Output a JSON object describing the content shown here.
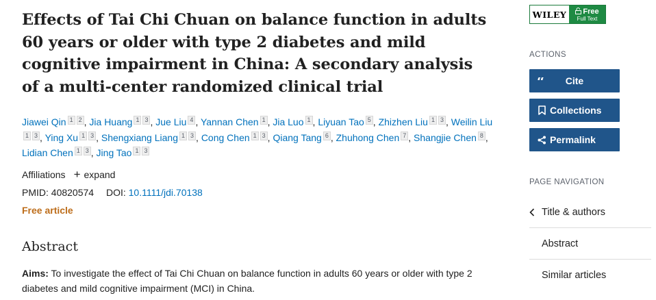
{
  "article": {
    "title": "Effects of Tai Chi Chuan on balance function in adults 60 years or older with type 2 diabetes and mild cognitive impairment in China: A secondary analysis of a multi-center randomized clinical trial",
    "authors": [
      {
        "name": "Jiawei Qin",
        "affs": [
          "1",
          "2"
        ]
      },
      {
        "name": "Jia Huang",
        "affs": [
          "1",
          "3"
        ]
      },
      {
        "name": "Jue Liu",
        "affs": [
          "4"
        ]
      },
      {
        "name": "Yannan Chen",
        "affs": [
          "1"
        ]
      },
      {
        "name": "Jia Luo",
        "affs": [
          "1"
        ]
      },
      {
        "name": "Liyuan Tao",
        "affs": [
          "5"
        ]
      },
      {
        "name": "Zhizhen Liu",
        "affs": [
          "1",
          "3"
        ]
      },
      {
        "name": "Weilin Liu",
        "affs": [
          "1",
          "3"
        ]
      },
      {
        "name": "Ying Xu",
        "affs": [
          "1",
          "3"
        ]
      },
      {
        "name": "Shengxiang Liang",
        "affs": [
          "1",
          "3"
        ]
      },
      {
        "name": "Cong Chen",
        "affs": [
          "1",
          "3"
        ]
      },
      {
        "name": "Qiang Tang",
        "affs": [
          "6"
        ]
      },
      {
        "name": "Zhuhong Chen",
        "affs": [
          "7"
        ]
      },
      {
        "name": "Shangjie Chen",
        "affs": [
          "8"
        ]
      },
      {
        "name": "Lidian Chen",
        "affs": [
          "1",
          "3"
        ]
      },
      {
        "name": "Jing Tao",
        "affs": [
          "1",
          "3"
        ]
      }
    ],
    "affiliations_label": "Affiliations",
    "expand_label": "expand",
    "pmid_label": "PMID:",
    "pmid": "40820574",
    "doi_label": "DOI:",
    "doi": "10.1111/jdi.70138",
    "free_label": "Free article",
    "abstract_heading": "Abstract",
    "abstract_aims_label": "Aims:",
    "abstract_aims_text": " To investigate the effect of Tai Chi Chuan on balance function in adults 60 years or older with type 2 diabetes and mild cognitive impairment (MCI) in China."
  },
  "sidebar": {
    "publisher": {
      "name": "WILEY",
      "free": "Free",
      "full_text": "Full Text"
    },
    "actions_label": "ACTIONS",
    "buttons": {
      "cite": "Cite",
      "collections": "Collections",
      "permalink": "Permalink"
    },
    "page_nav_label": "PAGE NAVIGATION",
    "nav_items": [
      "Title & authors",
      "Abstract",
      "Similar articles"
    ]
  },
  "colors": {
    "link": "#0071bc",
    "button": "#20558a",
    "free_article": "#bd6d1a",
    "wiley_green": "#1e8a43"
  }
}
